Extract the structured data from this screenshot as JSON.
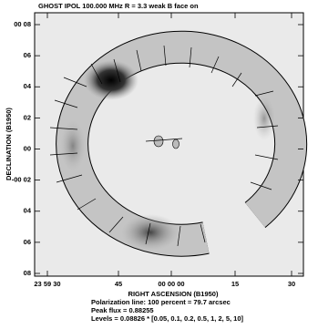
{
  "title": "GHOST  IPOL  100.000 MHz  R = 3.3 weak B  face on",
  "y_axis": {
    "label": "DECLINATION (B1950)",
    "ticks": [
      "00 08",
      "06",
      "04",
      "02",
      "00",
      "-00 02",
      "04",
      "06",
      "08"
    ]
  },
  "x_axis": {
    "label": "RIGHT ASCENSION (B1950)",
    "ticks": [
      "23 59 30",
      "45",
      "00 00 00",
      "15",
      "30"
    ]
  },
  "footer": [
    "Polarization line: 100 percent =  79.7 arcsec",
    "Peak flux =  0.88255",
    "Levels = 0.08826 * [0.05, 0.1, 0.2, 0.5, 1, 2, 5, 10]"
  ]
}
